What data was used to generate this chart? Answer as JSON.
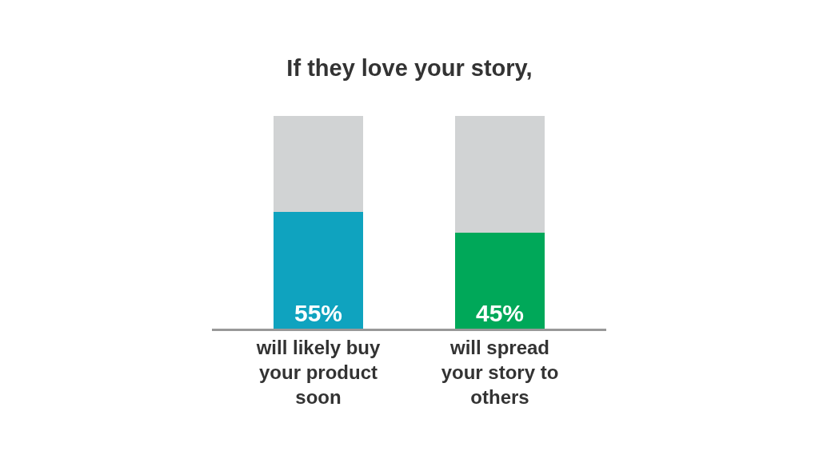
{
  "chart_data": {
    "type": "bar",
    "title": "If they love your story,",
    "stacked": true,
    "ylim": [
      0,
      100
    ],
    "tick_labels": "x",
    "categories": [
      "will likely buy\nyour product\nsoon",
      "will spread\nyour story to\nothers"
    ],
    "series": [
      {
        "colors": [
          "#0fa3bf",
          "#00a859"
        ],
        "values": [
          55,
          45
        ],
        "value_labels": [
          "55%",
          "45%"
        ]
      },
      {
        "color": "#d1d3d4",
        "values": [
          45,
          55
        ]
      }
    ]
  }
}
